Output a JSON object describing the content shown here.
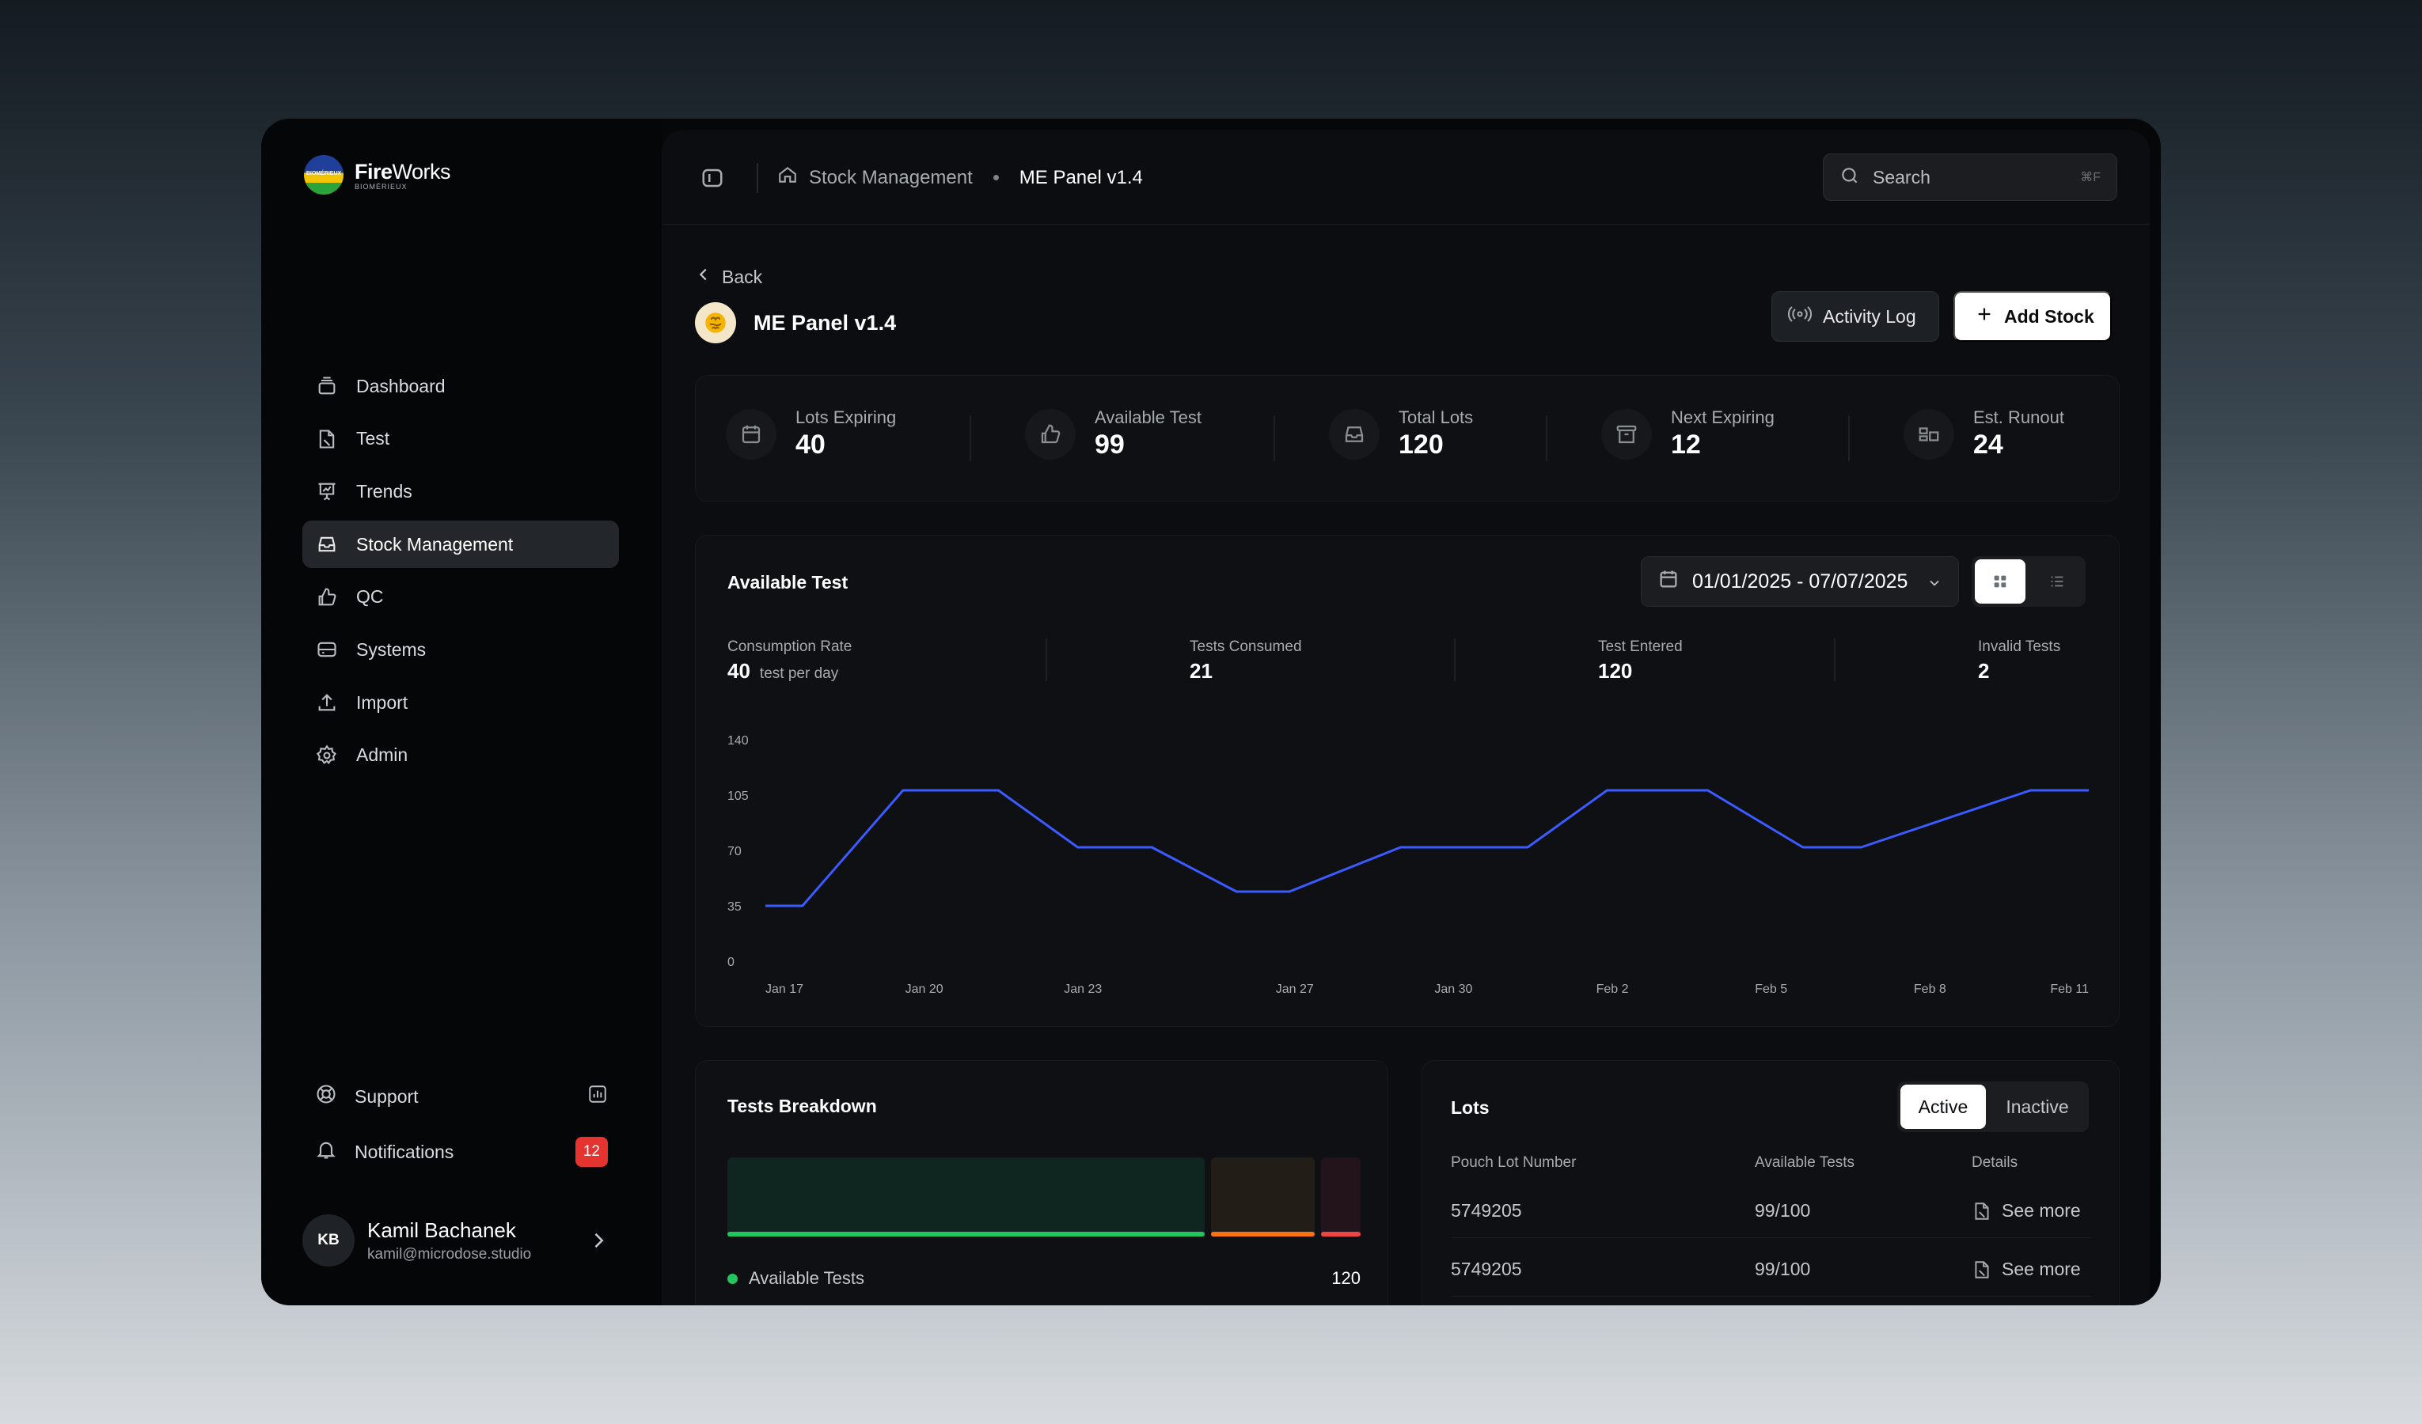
{
  "brand": {
    "title_bold": "Fire",
    "title_light": "Works",
    "subtitle": "BIOMÉRIEUX",
    "mark_text": "BIOMÉRIEUX"
  },
  "sidebar": {
    "items": [
      {
        "label": "Dashboard",
        "icon": "layers-icon"
      },
      {
        "label": "Test",
        "icon": "test-icon"
      },
      {
        "label": "Trends",
        "icon": "presentation-chart-icon"
      },
      {
        "label": "Stock Management",
        "icon": "inbox-stack-icon",
        "active": true
      },
      {
        "label": "QC",
        "icon": "thumbs-up-icon"
      },
      {
        "label": "Systems",
        "icon": "server-icon"
      },
      {
        "label": "Import",
        "icon": "upload-icon"
      },
      {
        "label": "Admin",
        "icon": "gear-icon"
      }
    ],
    "support_label": "Support",
    "notifications_label": "Notifications",
    "notifications_count": "12",
    "user": {
      "initials": "KB",
      "name": "Kamil Bachanek",
      "email": "kamil@microdose.studio"
    }
  },
  "topbar": {
    "breadcrumb_parent": "Stock Management",
    "breadcrumb_current": "ME Panel v1.4",
    "search_placeholder": "Search",
    "search_shortcut": "⌘F"
  },
  "page": {
    "back_label": "Back",
    "title": "ME Panel v1.4",
    "activity_log_label": "Activity Log",
    "add_stock_label": "Add Stock"
  },
  "stats": [
    {
      "label": "Lots Expiring",
      "value": "40",
      "icon": "calendar-icon"
    },
    {
      "label": "Available Test",
      "value": "99",
      "icon": "thumbs-up-icon"
    },
    {
      "label": "Total Lots",
      "value": "120",
      "icon": "inbox-icon"
    },
    {
      "label": "Next Expiring",
      "value": "12",
      "icon": "archive-icon"
    },
    {
      "label": "Est. Runout",
      "value": "24",
      "icon": "runout-icon"
    }
  ],
  "available_test": {
    "title": "Available Test",
    "date_range": "01/01/2025 - 07/07/2025",
    "metrics": {
      "consumption_label": "Consumption Rate",
      "consumption_value": "40",
      "consumption_unit": "test per day",
      "consumed_label": "Tests Consumed",
      "consumed_value": "21",
      "entered_label": "Test Entered",
      "entered_value": "120",
      "invalid_label": "Invalid Tests",
      "invalid_value": "2"
    }
  },
  "chart_data": {
    "type": "line",
    "title": "",
    "xlabel": "",
    "ylabel": "",
    "ylim": [
      0,
      140
    ],
    "yticks": [
      0,
      35,
      70,
      105,
      140
    ],
    "xticks": [
      "Jan 17",
      "Jan 20",
      "Jan 23",
      "Jan 27",
      "Jan 30",
      "Feb 2",
      "Feb 5",
      "Feb 8",
      "Feb 11"
    ],
    "series": [
      {
        "color": "#3a5bff",
        "points": [
          {
            "x": "Jan 17",
            "y": 35
          },
          {
            "x": "Jan 17.7",
            "y": 35
          },
          {
            "x": "Jan 19.6",
            "y": 108
          },
          {
            "x": "Jan 21.4",
            "y": 108
          },
          {
            "x": "Jan 22.9",
            "y": 72
          },
          {
            "x": "Jan 24.3",
            "y": 72
          },
          {
            "x": "Jan 25.9",
            "y": 44
          },
          {
            "x": "Jan 26.9",
            "y": 44
          },
          {
            "x": "Jan 29",
            "y": 72
          },
          {
            "x": "Jan 31.4",
            "y": 72
          },
          {
            "x": "Feb 1.9",
            "y": 108
          },
          {
            "x": "Feb 3.8",
            "y": 108
          },
          {
            "x": "Feb 5.6",
            "y": 72
          },
          {
            "x": "Feb 6.7",
            "y": 72
          },
          {
            "x": "Feb 9.9",
            "y": 108
          },
          {
            "x": "Feb 11",
            "y": 108
          }
        ]
      }
    ],
    "grid": false
  },
  "breakdown": {
    "title": "Tests Breakdown",
    "segments": [
      {
        "name": "Available Tests",
        "value": 120,
        "color": "#22c55e",
        "bg": "#0f2520"
      },
      {
        "name": "",
        "value": 26,
        "color": "#f97316",
        "bg": "#231d17"
      },
      {
        "name": "",
        "value": 10,
        "color": "#ef4444",
        "bg": "#22141a"
      }
    ],
    "legend_label": "Available Tests",
    "legend_value": "120"
  },
  "lots": {
    "title": "Lots",
    "active_label": "Active",
    "inactive_label": "Inactive",
    "columns": [
      "Pouch Lot Number",
      "Available Tests",
      "Details"
    ],
    "rows": [
      {
        "lot": "5749205",
        "available": "99/100",
        "details": "See more"
      },
      {
        "lot": "5749205",
        "available": "99/100",
        "details": "See more"
      }
    ]
  }
}
